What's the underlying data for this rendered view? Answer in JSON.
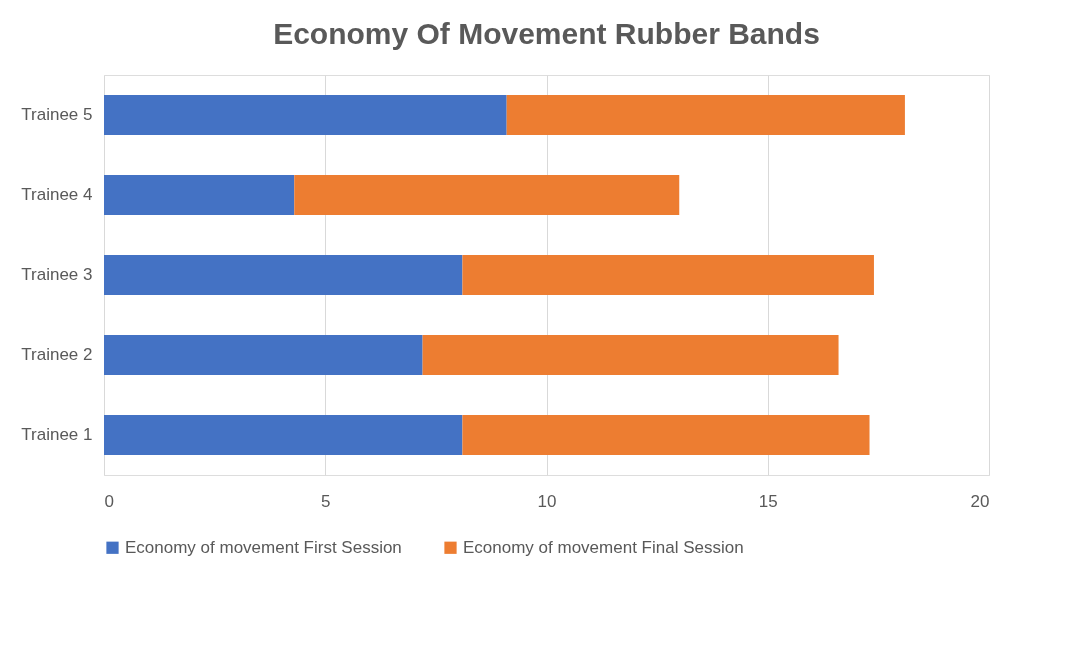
{
  "chart_data": {
    "type": "bar",
    "title": "Economy Of Movement Rubber Bands",
    "orientation": "horizontal",
    "stacked": true,
    "categories": [
      "Trainee 5",
      "Trainee 4",
      "Trainee 3",
      "Trainee 2",
      "Trainee 1"
    ],
    "series": [
      {
        "name": "Economy of movement First Session",
        "color": "#4472c4",
        "values": [
          9.1,
          4.3,
          8.1,
          7.2,
          8.1
        ]
      },
      {
        "name": "Economy of movement Final Session",
        "color": "#ed7d31",
        "values": [
          9.0,
          8.7,
          9.3,
          9.4,
          9.2
        ]
      }
    ],
    "xlim": [
      0,
      20
    ],
    "xticks": [
      0,
      5,
      10,
      15,
      20
    ],
    "grid": "x",
    "legend": "bottom"
  }
}
